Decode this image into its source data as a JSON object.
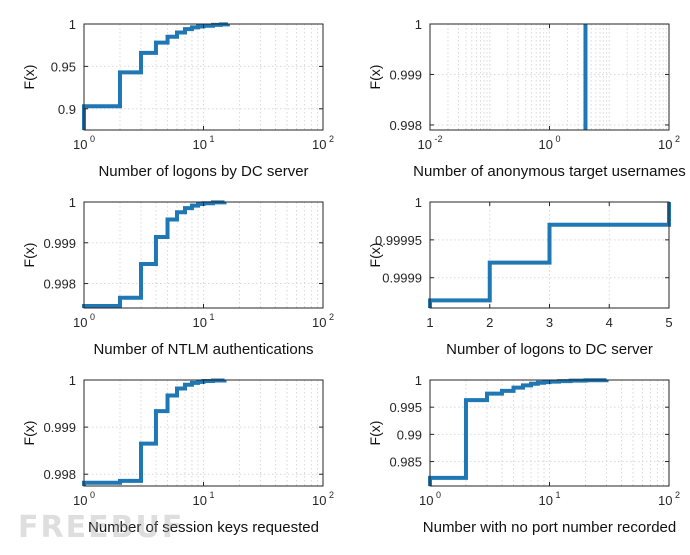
{
  "watermark": "FREEBUF",
  "colors": {
    "line": "#1f77b4",
    "grid": "#d9d9d9",
    "axis": "#262626"
  },
  "chart_data": [
    {
      "type": "line",
      "step": true,
      "xscale": "log",
      "xlabel": "Number of logons by DC server",
      "ylabel": "F(x)",
      "xlim": [
        1,
        100
      ],
      "ylim": [
        0.875,
        1.0
      ],
      "xticks": [
        {
          "v": 1,
          "b": "10",
          "e": "0"
        },
        {
          "v": 10,
          "b": "10",
          "e": "1"
        },
        {
          "v": 100,
          "b": "10",
          "e": "2"
        }
      ],
      "yticks": [
        {
          "v": 0.9,
          "t": "0.9"
        },
        {
          "v": 0.95,
          "t": "0.95"
        },
        {
          "v": 1,
          "t": "1"
        }
      ],
      "x": [
        1,
        2,
        3,
        4,
        5,
        6,
        7,
        8,
        9,
        10,
        12,
        14,
        16
      ],
      "y": [
        0.903,
        0.943,
        0.966,
        0.978,
        0.985,
        0.99,
        0.994,
        0.996,
        0.997,
        0.998,
        0.999,
        0.9995,
        1.0
      ]
    },
    {
      "type": "line",
      "step": true,
      "xscale": "log",
      "xlabel": "Number of anonymous target usernames",
      "ylabel": "F(x)",
      "xlim": [
        0.01,
        100
      ],
      "ylim": [
        0.9979,
        1.0
      ],
      "xticks": [
        {
          "v": 0.01,
          "b": "10",
          "e": "-2"
        },
        {
          "v": 1,
          "b": "10",
          "e": "0"
        },
        {
          "v": 100,
          "b": "10",
          "e": "2"
        }
      ],
      "yticks": [
        {
          "v": 0.998,
          "t": "0.998"
        },
        {
          "v": 0.999,
          "t": "0.999"
        },
        {
          "v": 1,
          "t": "1"
        }
      ],
      "x": [
        4,
        4
      ],
      "y": [
        0.9979,
        1.0
      ]
    },
    {
      "type": "line",
      "step": true,
      "xscale": "log",
      "xlabel": "Number of NTLM authentications",
      "ylabel": "F(x)",
      "xlim": [
        1,
        100
      ],
      "ylim": [
        0.9974,
        1.0
      ],
      "xticks": [
        {
          "v": 1,
          "b": "10",
          "e": "0"
        },
        {
          "v": 10,
          "b": "10",
          "e": "1"
        },
        {
          "v": 100,
          "b": "10",
          "e": "2"
        }
      ],
      "yticks": [
        {
          "v": 0.998,
          "t": "0.998"
        },
        {
          "v": 0.999,
          "t": "0.999"
        },
        {
          "v": 1,
          "t": "1"
        }
      ],
      "x": [
        1,
        2,
        3,
        4,
        5,
        6,
        7,
        8,
        9,
        10,
        12,
        15
      ],
      "y": [
        0.99745,
        0.99765,
        0.99848,
        0.99914,
        0.99957,
        0.99975,
        0.99985,
        0.99991,
        0.99995,
        0.99997,
        0.99999,
        1.0
      ]
    },
    {
      "type": "line",
      "step": true,
      "xscale": "linear",
      "xlabel": "Number of logons to DC server",
      "ylabel": "F(x)",
      "xlim": [
        1,
        5
      ],
      "ylim": [
        0.99986,
        1.0
      ],
      "xticks": [
        {
          "v": 1,
          "t": "1"
        },
        {
          "v": 2,
          "t": "2"
        },
        {
          "v": 3,
          "t": "3"
        },
        {
          "v": 4,
          "t": "4"
        },
        {
          "v": 5,
          "t": "5"
        }
      ],
      "yticks": [
        {
          "v": 0.9999,
          "t": "0.9999"
        },
        {
          "v": 0.99995,
          "t": "0.99995"
        },
        {
          "v": 1,
          "t": "1"
        }
      ],
      "x": [
        1,
        2,
        3,
        5
      ],
      "y": [
        0.99987,
        0.99992,
        0.99997,
        1.0
      ]
    },
    {
      "type": "line",
      "step": true,
      "xscale": "log",
      "xlabel": "Number of session keys requested",
      "ylabel": "F(x)",
      "xlim": [
        1,
        100
      ],
      "ylim": [
        0.99775,
        1.0
      ],
      "xticks": [
        {
          "v": 1,
          "b": "10",
          "e": "0"
        },
        {
          "v": 10,
          "b": "10",
          "e": "1"
        },
        {
          "v": 100,
          "b": "10",
          "e": "2"
        }
      ],
      "yticks": [
        {
          "v": 0.998,
          "t": "0.998"
        },
        {
          "v": 0.999,
          "t": "0.999"
        },
        {
          "v": 1,
          "t": "1"
        }
      ],
      "x": [
        1,
        2,
        3,
        4,
        5,
        6,
        7,
        8,
        9,
        10,
        12,
        15
      ],
      "y": [
        0.99782,
        0.99786,
        0.99865,
        0.99934,
        0.99967,
        0.99982,
        0.9999,
        0.99994,
        0.99996,
        0.99998,
        0.99999,
        1.0
      ]
    },
    {
      "type": "line",
      "step": true,
      "xscale": "log",
      "xlabel": "Number with no port number recorded",
      "ylabel": "F(x)",
      "xlim": [
        1,
        100
      ],
      "ylim": [
        0.9805,
        1.0
      ],
      "xticks": [
        {
          "v": 1,
          "b": "10",
          "e": "0"
        },
        {
          "v": 10,
          "b": "10",
          "e": "1"
        },
        {
          "v": 100,
          "b": "10",
          "e": "2"
        }
      ],
      "yticks": [
        {
          "v": 0.985,
          "t": "0.985"
        },
        {
          "v": 0.99,
          "t": "0.99"
        },
        {
          "v": 0.995,
          "t": "0.995"
        },
        {
          "v": 1,
          "t": "1"
        }
      ],
      "x": [
        1,
        2,
        3,
        4,
        5,
        6,
        7,
        8,
        9,
        10,
        12,
        15,
        20,
        30
      ],
      "y": [
        0.982,
        0.9963,
        0.9975,
        0.998,
        0.9986,
        0.999,
        0.9993,
        0.9995,
        0.9996,
        0.9997,
        0.9998,
        0.99988,
        0.99995,
        1.0
      ]
    }
  ]
}
